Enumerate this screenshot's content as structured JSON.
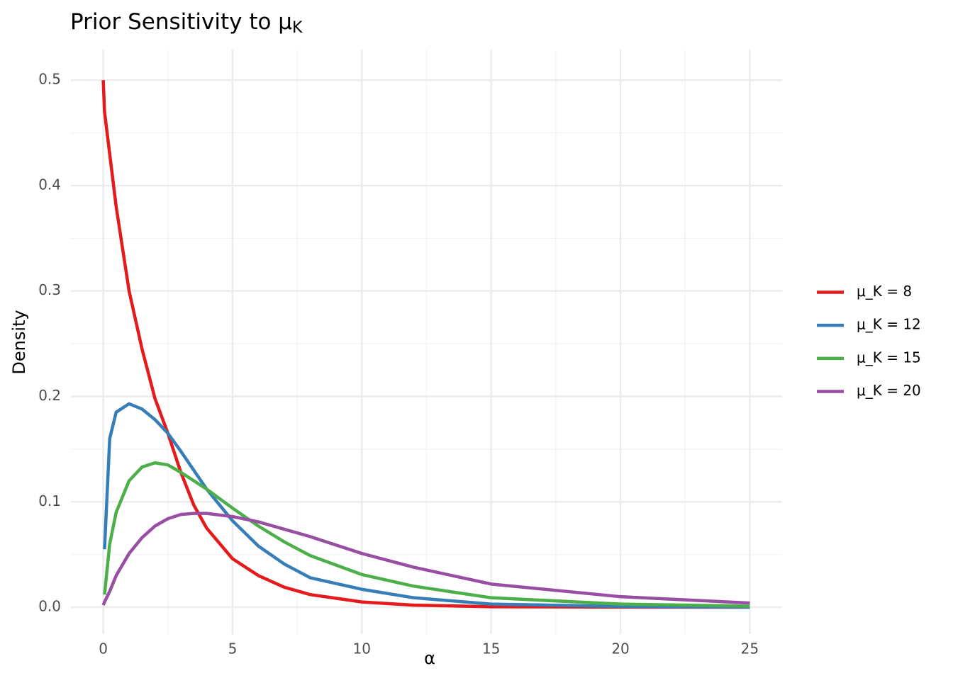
{
  "chart_data": {
    "type": "line",
    "title": "Prior Sensitivity to μ",
    "title_subscript": "K",
    "x_label": "α",
    "y_label": "Density",
    "x": [
      0,
      0.05,
      0.25,
      0.5,
      1,
      1.5,
      2,
      2.5,
      3,
      3.5,
      4,
      5,
      6,
      7,
      8,
      10,
      12,
      15,
      20,
      25
    ],
    "series": [
      {
        "name": "μ_K = 8",
        "color": "#e41a1c",
        "values": [
          0.5,
          0.47,
          0.43,
          0.38,
          0.3,
          0.245,
          0.198,
          0.165,
          0.128,
          0.097,
          0.075,
          0.046,
          0.03,
          0.019,
          0.012,
          0.005,
          0.002,
          0.0005,
          0.0001,
          0
        ]
      },
      {
        "name": "μ_K = 12",
        "color": "#377eb8",
        "values": [
          null,
          0.055,
          0.16,
          0.185,
          0.193,
          0.188,
          0.178,
          0.165,
          0.148,
          0.13,
          0.112,
          0.082,
          0.058,
          0.041,
          0.028,
          0.017,
          0.009,
          0.003,
          0.0007,
          0.0001
        ]
      },
      {
        "name": "μ_K = 15",
        "color": "#4daf4a",
        "values": [
          null,
          0.012,
          0.06,
          0.09,
          0.12,
          0.133,
          0.137,
          0.135,
          0.128,
          0.12,
          0.112,
          0.094,
          0.077,
          0.062,
          0.049,
          0.031,
          0.02,
          0.009,
          0.003,
          0.001
        ]
      },
      {
        "name": "μ_K = 20",
        "color": "#984ea3",
        "values": [
          0.002,
          0.005,
          0.015,
          0.03,
          0.051,
          0.066,
          0.077,
          0.084,
          0.088,
          0.089,
          0.089,
          0.086,
          0.081,
          0.074,
          0.067,
          0.051,
          0.038,
          0.022,
          0.01,
          0.004
        ]
      }
    ],
    "xlim": [
      -1.25,
      26.25
    ],
    "ylim": [
      -0.0255,
      0.529
    ],
    "xticks": [
      0,
      5,
      10,
      15,
      20,
      25
    ],
    "yticks": [
      {
        "value": 0,
        "label": "0.0"
      },
      0.1,
      0.2,
      0.3,
      0.4,
      0.5
    ],
    "x_minor_grid": [
      2.5,
      7.5,
      12.5,
      17.5,
      22.5
    ],
    "y_minor_grid": [
      0.05,
      0.15,
      0.25,
      0.35,
      0.45
    ],
    "grid": true,
    "legend": "right"
  }
}
